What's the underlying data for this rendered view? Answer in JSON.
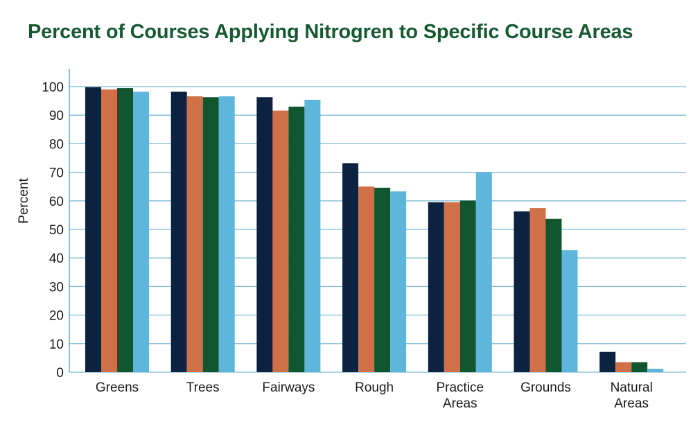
{
  "chart_data": {
    "type": "bar",
    "title": "Percent of Courses Applying Nitrogren to Specific Course Areas",
    "xlabel": "",
    "ylabel": "Percent",
    "ylim": [
      0,
      100
    ],
    "yticks": [
      0,
      10,
      20,
      30,
      40,
      50,
      60,
      70,
      80,
      90,
      100
    ],
    "grid": true,
    "legend": "none",
    "categories": [
      "Greens",
      "Trees",
      "Fairways",
      "Rough",
      "Practice\nAreas",
      "Grounds",
      "Natural\nAreas"
    ],
    "series": [
      {
        "color": "#0b2340",
        "values": [
          99.8,
          98.2,
          96.3,
          73.2,
          59.5,
          56.3,
          7.1
        ]
      },
      {
        "color": "#d07048",
        "values": [
          99.0,
          96.6,
          91.6,
          65.0,
          59.5,
          57.5,
          3.5
        ]
      },
      {
        "color": "#125630",
        "values": [
          99.5,
          96.3,
          93.0,
          64.6,
          60.1,
          53.7,
          3.5
        ]
      },
      {
        "color": "#5fb6dc",
        "values": [
          98.2,
          96.6,
          95.4,
          63.3,
          70.0,
          42.7,
          1.2
        ]
      }
    ],
    "gridColor": "#7fb9d4",
    "axisColor": "#6aa9c7"
  }
}
